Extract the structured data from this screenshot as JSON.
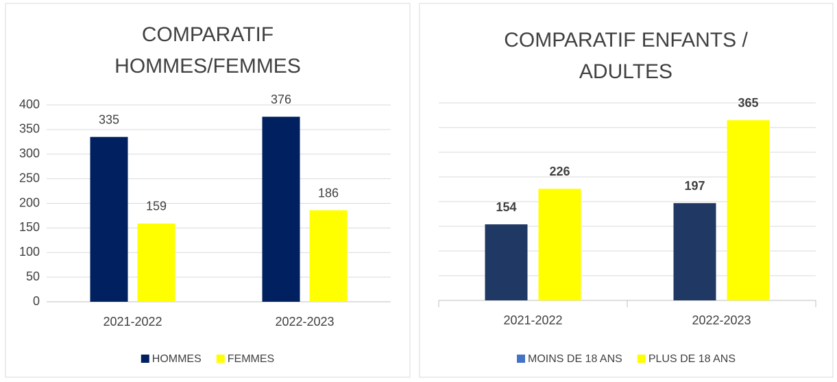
{
  "chart_data": [
    {
      "type": "bar",
      "title": "COMPARATIF HOMMES/FEMMES",
      "categories": [
        "2021-2022",
        "2022-2023"
      ],
      "series": [
        {
          "name": "HOMMES",
          "color": "#002060",
          "values": [
            335,
            376
          ]
        },
        {
          "name": "FEMMES",
          "color": "#ffff00",
          "values": [
            159,
            186
          ]
        }
      ],
      "ylim": [
        0,
        400
      ],
      "yticks": [
        0,
        50,
        100,
        150,
        200,
        250,
        300,
        350,
        400
      ],
      "grid": true,
      "show_ytick_labels": true,
      "bold_value_labels": false,
      "legend": "bottom"
    },
    {
      "type": "bar",
      "title": "COMPARATIF ENFANTS / ADULTES",
      "categories": [
        "2021-2022",
        "2022-2023"
      ],
      "series": [
        {
          "name": "MOINS DE 18 ANS",
          "color": "#203864",
          "legend_color": "#4472c4",
          "values": [
            154,
            197
          ]
        },
        {
          "name": "PLUS DE 18 ANS",
          "color": "#ffff00",
          "values": [
            226,
            365
          ]
        }
      ],
      "ylim": [
        0,
        400
      ],
      "yticks": [
        0,
        50,
        100,
        150,
        200,
        250,
        300,
        350,
        400
      ],
      "grid": true,
      "show_ytick_labels": false,
      "bold_value_labels": true,
      "legend": "bottom"
    }
  ]
}
